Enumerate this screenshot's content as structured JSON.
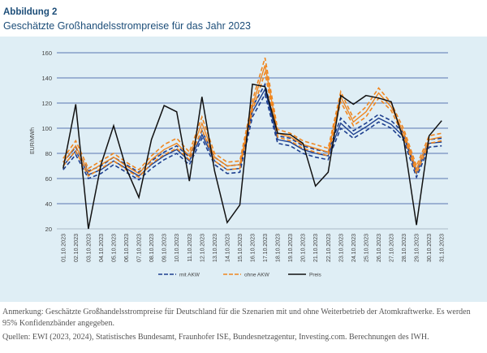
{
  "figure": {
    "label": "Abbildung 2",
    "title": "Geschätzte Großhandelsstrompreise für das Jahr 2023"
  },
  "chart_data": {
    "type": "line",
    "ylabel": "EUR/MWh",
    "xlabel": "",
    "ylim": [
      20,
      160
    ],
    "yticks": [
      20,
      40,
      60,
      80,
      100,
      120,
      140,
      160
    ],
    "grid": true,
    "legend_position": "bottom",
    "categories": [
      "01.10.2023",
      "02.10.2023",
      "03.10.2023",
      "04.10.2023",
      "05.10.2023",
      "06.10.2023",
      "07.10.2023",
      "08.10.2023",
      "09.10.2023",
      "10.10.2023",
      "11.10.2023",
      "12.10.2023",
      "13.10.2023",
      "14.10.2023",
      "15.10.2023",
      "16.10.2023",
      "17.10.2023",
      "18.10.2023",
      "19.10.2023",
      "20.10.2023",
      "21.10.2023",
      "22.10.2023",
      "23.10.2023",
      "24.10.2023",
      "25.10.2023",
      "26.10.2023",
      "27.10.2023",
      "28.10.2023",
      "29.10.2023",
      "30.10.2023",
      "31.10.2023"
    ],
    "series": [
      {
        "name": "mit AKW",
        "color": "#1d3f8f",
        "values": [
          70,
          82,
          63,
          67,
          74,
          68,
          62,
          71,
          78,
          83,
          74,
          95,
          74,
          67,
          68,
          113,
          131,
          91,
          89,
          83,
          80,
          78,
          104,
          95,
          101,
          108,
          103,
          93,
          64,
          88,
          89
        ],
        "band": [
          3,
          3,
          3,
          3,
          3,
          3,
          3,
          3,
          3,
          3,
          3,
          3,
          3,
          3,
          3,
          4,
          4,
          3,
          3,
          3,
          3,
          3,
          4,
          3,
          3,
          3,
          3,
          3,
          3,
          3,
          3
        ]
      },
      {
        "name": "ohne AKW",
        "color": "#f0861f",
        "values": [
          73,
          86,
          65,
          71,
          77,
          70,
          64,
          75,
          83,
          88,
          78,
          104,
          77,
          70,
          71,
          118,
          150,
          96,
          93,
          87,
          84,
          81,
          125,
          105,
          113,
          128,
          117,
          96,
          67,
          91,
          93
        ],
        "band": [
          3,
          4,
          3,
          3,
          3,
          3,
          3,
          3,
          4,
          4,
          3,
          5,
          3,
          3,
          3,
          4,
          6,
          3,
          3,
          3,
          3,
          3,
          4,
          3,
          4,
          4,
          3,
          3,
          3,
          3,
          3
        ]
      },
      {
        "name": "Preis",
        "color": "#111111",
        "values": [
          68,
          119,
          20,
          71,
          102,
          68,
          45,
          91,
          118,
          113,
          58,
          125,
          66,
          25,
          39,
          135,
          133,
          96,
          95,
          88,
          54,
          65,
          126,
          119,
          126,
          124,
          121,
          90,
          23,
          94,
          106
        ],
        "band": null
      }
    ]
  },
  "notes": {
    "remark": "Anmerkung: Geschätzte Großhandelsstrompreise für Deutschland für die Szenarien mit und ohne Weiterbetrieb der Atomkraftwerke. Es werden 95% Konfidenzbänder angegeben.",
    "sources": "Quellen: EWI (2023, 2024), Statistisches Bundesamt, Fraunhofer ISE, Bundesnetzagentur, Investing.com. Berechnungen des IWH."
  }
}
